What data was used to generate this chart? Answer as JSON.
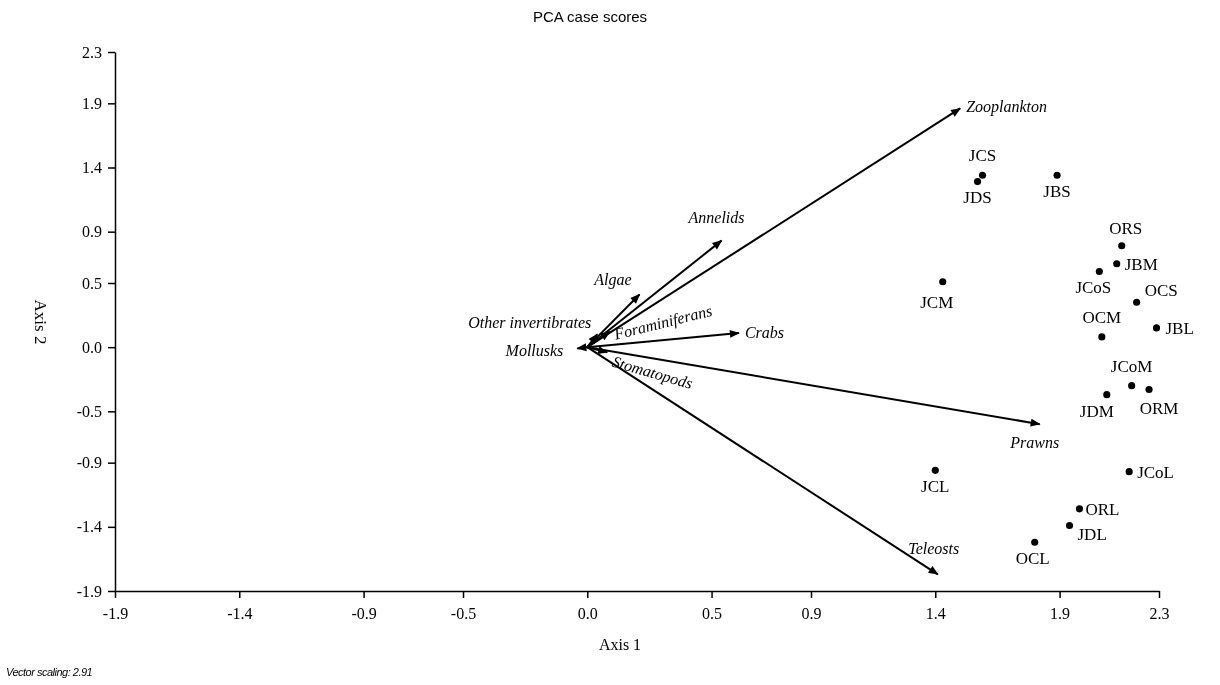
{
  "chart_data": {
    "type": "scatter",
    "title": "PCA case scores",
    "xlabel": "Axis 1",
    "ylabel": "Axis 2",
    "annotations": [
      "Vector scaling: 2.91"
    ],
    "xlim": [
      -1.9,
      2.3
    ],
    "ylim": [
      -1.9,
      2.3
    ],
    "xticks": [
      -1.9,
      -1.4,
      -0.9,
      -0.5,
      {
        "value": 0,
        "label": "0.0"
      },
      0.5,
      0.9,
      1.4,
      1.9,
      2.3
    ],
    "yticks": [
      -1.9,
      -1.4,
      -0.9,
      -0.5,
      {
        "value": 0,
        "label": "0.0"
      },
      0.5,
      0.9,
      1.4,
      1.9,
      2.3
    ],
    "grid": false,
    "legend": false,
    "marker": "circle",
    "series": [
      {
        "type": "line",
        "marker": "none",
        "name": "Zooplankton",
        "color": "#000000",
        "x": [
          0,
          1.5
        ],
        "values": [
          0,
          1.86
        ]
      },
      {
        "type": "line",
        "marker": "none",
        "name": "Annelids",
        "color": "#000000",
        "x": [
          0,
          0.54
        ],
        "values": [
          0,
          0.83
        ]
      },
      {
        "type": "line",
        "marker": "none",
        "name": "Algae",
        "color": "#000000",
        "x": [
          0,
          0.21
        ],
        "values": [
          0,
          0.41
        ]
      },
      {
        "type": "line",
        "marker": "none",
        "name": "Other invertibrates",
        "color": "#000000",
        "x": [
          0,
          0.04
        ],
        "values": [
          0,
          0.1
        ]
      },
      {
        "type": "line",
        "marker": "none",
        "name": "Foraminiferans",
        "color": "#000000",
        "x": [
          0,
          0.09
        ],
        "values": [
          0,
          0.12
        ]
      },
      {
        "type": "line",
        "marker": "none",
        "name": "Crabs",
        "color": "#000000",
        "x": [
          0,
          0.61
        ],
        "values": [
          0,
          0.11
        ]
      },
      {
        "type": "line",
        "marker": "none",
        "name": "Mollusks",
        "color": "#000000",
        "x": [
          0,
          -0.04
        ],
        "values": [
          0,
          -0.01
        ]
      },
      {
        "type": "line",
        "marker": "none",
        "name": "Stomatopods",
        "color": "#000000",
        "x": [
          0,
          0.08
        ],
        "values": [
          0,
          -0.04
        ]
      },
      {
        "type": "line",
        "marker": "none",
        "name": "Prawns",
        "color": "#000000",
        "x": [
          0,
          1.82
        ],
        "values": [
          0,
          -0.6
        ]
      },
      {
        "type": "line",
        "marker": "none",
        "name": "Teleosts",
        "color": "#000000",
        "x": [
          0,
          1.41
        ],
        "values": [
          0,
          -1.77
        ]
      },
      {
        "name": "JCS",
        "color": "#000000",
        "x": [
          1.59
        ],
        "values": [
          1.34
        ]
      },
      {
        "name": "JDS",
        "color": "#000000",
        "x": [
          1.57
        ],
        "values": [
          1.29
        ]
      },
      {
        "name": "JBS",
        "color": "#000000",
        "x": [
          1.89
        ],
        "values": [
          1.34
        ]
      },
      {
        "name": "ORS",
        "color": "#000000",
        "x": [
          2.15
        ],
        "values": [
          0.79
        ]
      },
      {
        "name": "JBM",
        "color": "#000000",
        "x": [
          2.13
        ],
        "values": [
          0.65
        ]
      },
      {
        "name": "JCoS",
        "color": "#000000",
        "x": [
          2.06
        ],
        "values": [
          0.59
        ]
      },
      {
        "name": "OCS",
        "color": "#000000",
        "x": [
          2.21
        ],
        "values": [
          0.35
        ]
      },
      {
        "name": "JBL",
        "color": "#000000",
        "x": [
          2.29
        ],
        "values": [
          0.15
        ]
      },
      {
        "name": "OCM",
        "color": "#000000",
        "x": [
          2.07
        ],
        "values": [
          0.08
        ]
      },
      {
        "name": "JCM",
        "color": "#000000",
        "x": [
          1.43
        ],
        "values": [
          0.51
        ]
      },
      {
        "name": "JCoM",
        "color": "#000000",
        "x": [
          2.19
        ],
        "values": [
          -0.3
        ]
      },
      {
        "name": "ORM",
        "color": "#000000",
        "x": [
          2.26
        ],
        "values": [
          -0.33
        ]
      },
      {
        "name": "JDM",
        "color": "#000000",
        "x": [
          2.09
        ],
        "values": [
          -0.37
        ]
      },
      {
        "name": "JCL",
        "color": "#000000",
        "x": [
          1.4
        ],
        "values": [
          -0.96
        ]
      },
      {
        "name": "JCoL",
        "color": "#000000",
        "x": [
          2.18
        ],
        "values": [
          -0.97
        ]
      },
      {
        "name": "ORL",
        "color": "#000000",
        "x": [
          1.98
        ],
        "values": [
          -1.26
        ]
      },
      {
        "name": "JDL",
        "color": "#000000",
        "x": [
          1.94
        ],
        "values": [
          -1.39
        ]
      },
      {
        "name": "OCL",
        "color": "#000000",
        "x": [
          1.8
        ],
        "values": [
          -1.52
        ]
      }
    ]
  }
}
